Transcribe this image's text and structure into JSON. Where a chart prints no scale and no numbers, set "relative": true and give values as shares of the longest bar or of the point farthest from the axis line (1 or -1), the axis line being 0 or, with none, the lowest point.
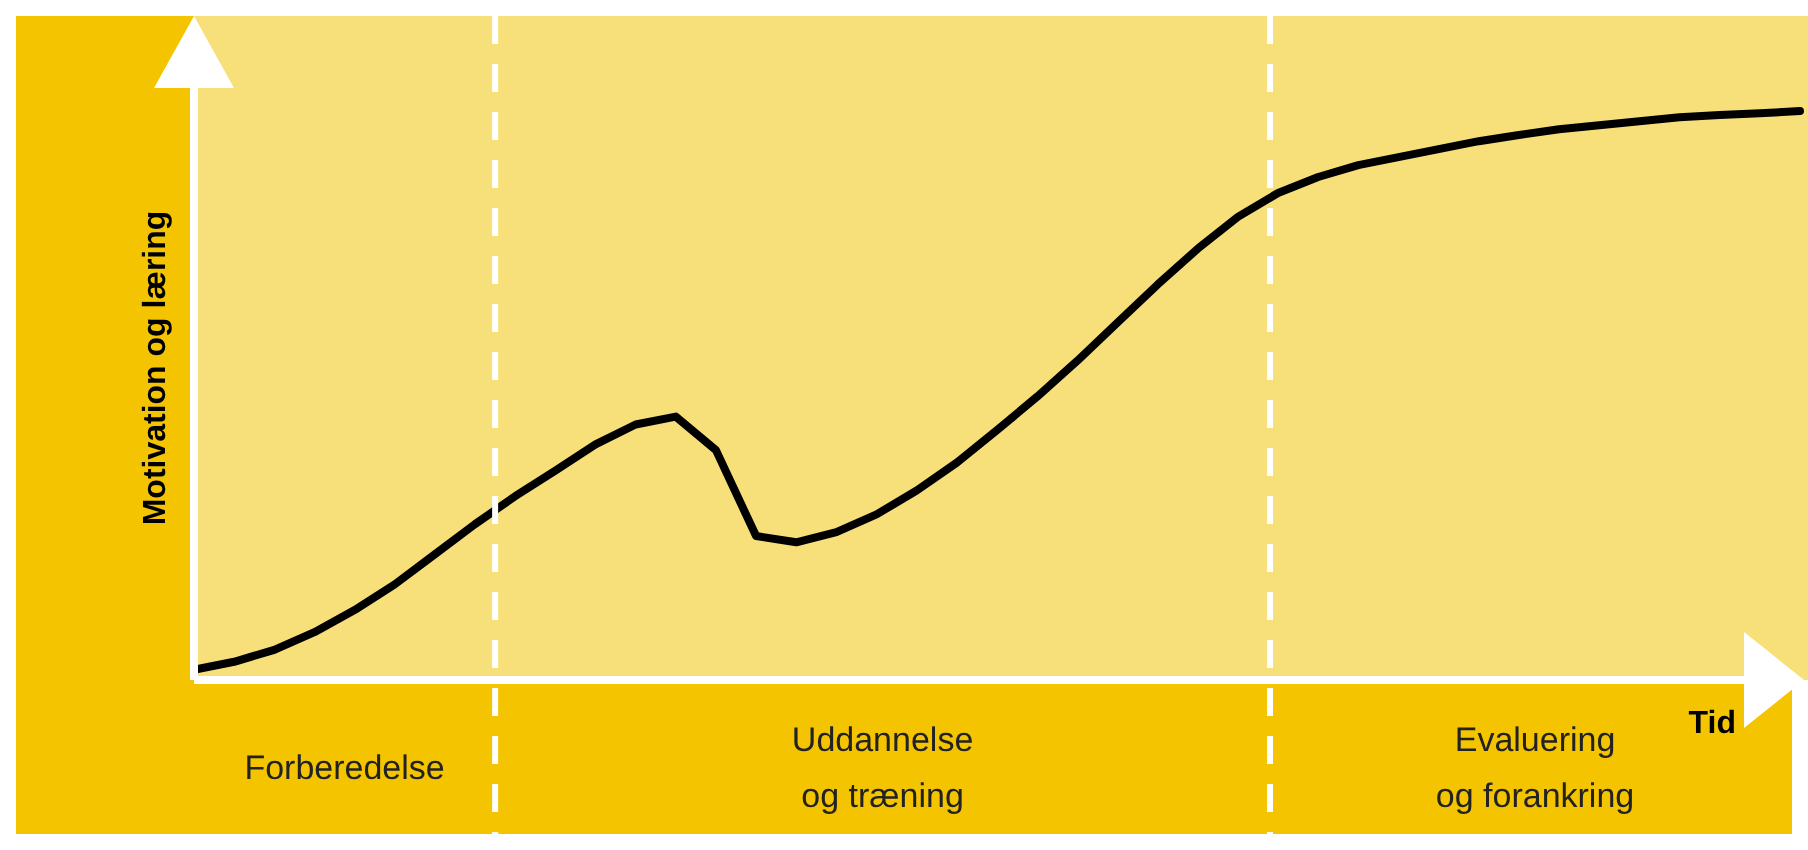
{
  "chart_data": {
    "type": "line",
    "relative": true,
    "xlabel": "Tid",
    "ylabel": "Motivation og læring",
    "categories": [
      null,
      null,
      null,
      null,
      null,
      null,
      null,
      null,
      null,
      null,
      null,
      null,
      null,
      null,
      null,
      null,
      null,
      null,
      null,
      null,
      null,
      null,
      null,
      null,
      null,
      null,
      null,
      null,
      null,
      null,
      null,
      null,
      null,
      null,
      null,
      null,
      null,
      null,
      null,
      null,
      null
    ],
    "legend": false,
    "marker": "none",
    "line_style": "solid",
    "series": [
      {
        "color": "#000000",
        "values": [
          0.018,
          0.032,
          0.053,
          0.084,
          0.123,
          0.168,
          0.221,
          0.274,
          0.323,
          0.368,
          0.414,
          0.449,
          0.463,
          0.404,
          0.253,
          0.242,
          0.26,
          0.291,
          0.333,
          0.382,
          0.439,
          0.498,
          0.561,
          0.628,
          0.695,
          0.758,
          0.814,
          0.856,
          0.884,
          0.905,
          0.919,
          0.933,
          0.947,
          0.958,
          0.968,
          0.975,
          0.982,
          0.989,
          0.993,
          0.996,
          1
        ]
      }
    ],
    "annotations": [
      "Forberedelse",
      "Uddannelse\nog træning",
      "Evaluering\nog forankring"
    ]
  }
}
